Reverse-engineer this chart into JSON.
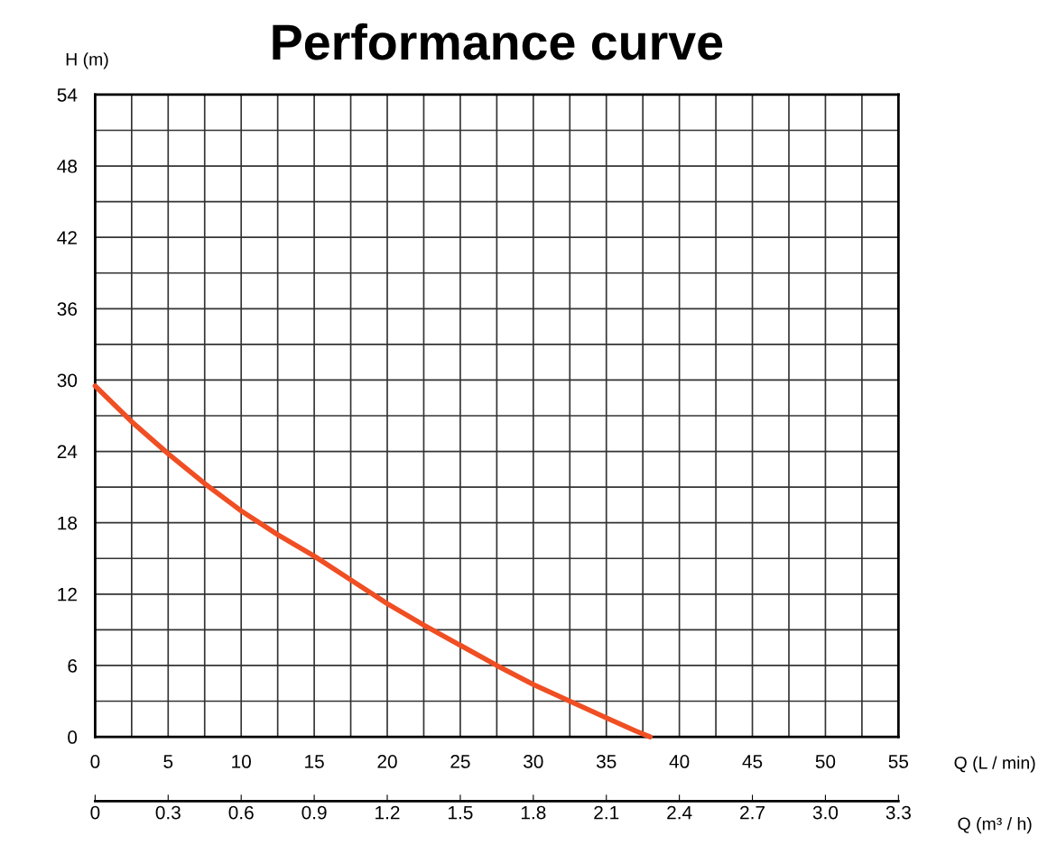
{
  "chart_data": {
    "type": "line",
    "title": "Performance curve",
    "xlabel": "Q (L / min)",
    "ylabel": "H (m)",
    "x2label": "Q (m³ / h)",
    "x": [
      0,
      2.5,
      5,
      7.5,
      10,
      12.5,
      15,
      17.5,
      20,
      22.5,
      25,
      27.5,
      30,
      32.5,
      35,
      37,
      38
    ],
    "series": [
      {
        "color": "#f04e23",
        "values": [
          29.5,
          26.5,
          23.8,
          21.3,
          19.0,
          17.0,
          15.2,
          13.2,
          11.2,
          9.4,
          7.7,
          6.0,
          4.4,
          3.0,
          1.6,
          0.5,
          0
        ]
      }
    ],
    "xlim": [
      0,
      55
    ],
    "ylim": [
      0,
      54
    ],
    "xticks": [
      0,
      {
        "value": 2.5,
        "label": null
      },
      5,
      {
        "value": 7.5,
        "label": null
      },
      10,
      {
        "value": 12.5,
        "label": null
      },
      15,
      {
        "value": 17.5,
        "label": null
      },
      20,
      {
        "value": 22.5,
        "label": null
      },
      25,
      {
        "value": 27.5,
        "label": null
      },
      30,
      {
        "value": 32.5,
        "label": null
      },
      35,
      {
        "value": 37.5,
        "label": null
      },
      40,
      {
        "value": 42.5,
        "label": null
      },
      45,
      {
        "value": 47.5,
        "label": null
      },
      50,
      {
        "value": 52.5,
        "label": null
      },
      55
    ],
    "yticks": [
      0,
      {
        "value": 3,
        "label": null
      },
      6,
      {
        "value": 9,
        "label": null
      },
      12,
      {
        "value": 15,
        "label": null
      },
      18,
      {
        "value": 21,
        "label": null
      },
      24,
      {
        "value": 27,
        "label": null
      },
      30,
      {
        "value": 33,
        "label": null
      },
      36,
      {
        "value": 39,
        "label": null
      },
      42,
      {
        "value": 45,
        "label": null
      },
      48,
      {
        "value": 51,
        "label": null
      },
      54
    ],
    "x2lim": [
      0,
      3.3
    ],
    "x2ticks": [
      0,
      0.3,
      0.6,
      0.9,
      1.2,
      1.5,
      1.8,
      2.1,
      2.4,
      2.7,
      {
        "value": 3.0,
        "label": "3.0"
      },
      3.3
    ],
    "grid": true,
    "legend": false,
    "marker": "none",
    "line_style": "solid"
  }
}
